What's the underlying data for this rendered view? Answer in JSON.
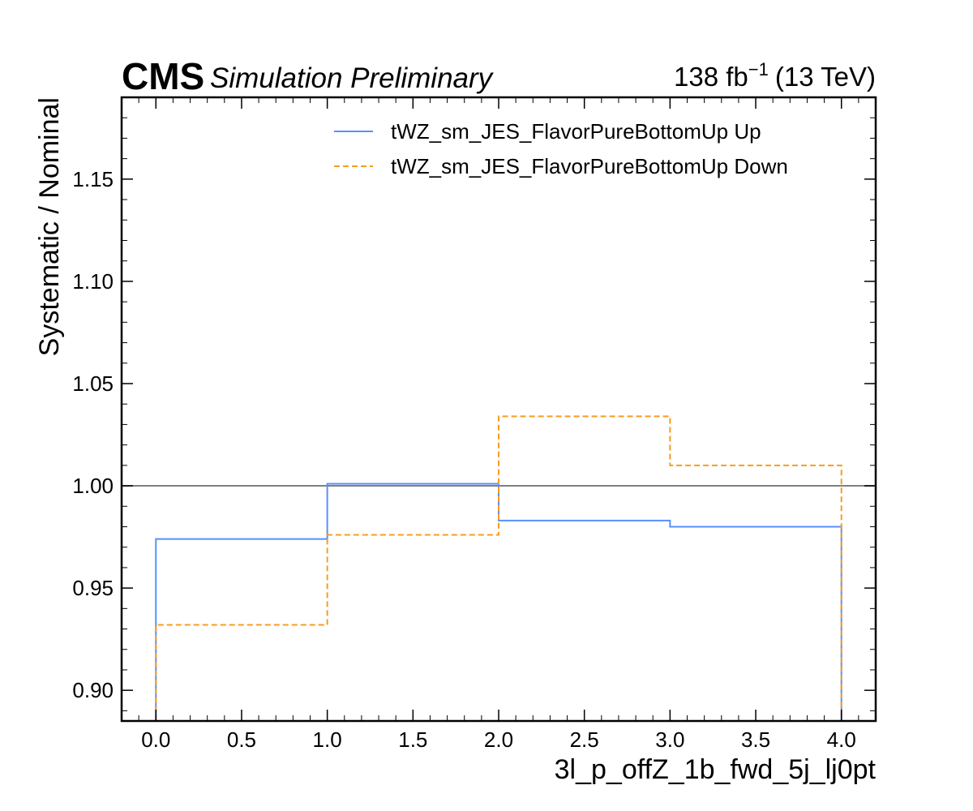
{
  "header": {
    "experiment": "CMS",
    "extra_text": "Simulation Preliminary",
    "lumi_value": "138 fb",
    "lumi_exponent": "−1",
    "energy": "(13 TeV)"
  },
  "chart_data": {
    "type": "line",
    "drawstyle": "step",
    "xlabel": "3l_p_offZ_1b_fwd_5j_lj0pt",
    "ylabel": "Systematic / Nominal",
    "xlim": [
      -0.2,
      4.2
    ],
    "ylim": [
      0.885,
      1.19
    ],
    "x_ticks": [
      0.0,
      0.5,
      1.0,
      1.5,
      2.0,
      2.5,
      3.0,
      3.5,
      4.0
    ],
    "x_tick_labels": [
      "0.0",
      "0.5",
      "1.0",
      "1.5",
      "2.0",
      "2.5",
      "3.0",
      "3.5",
      "4.0"
    ],
    "y_ticks": [
      0.9,
      0.95,
      1.0,
      1.05,
      1.1,
      1.15
    ],
    "y_tick_labels": [
      "0.90",
      "0.95",
      "1.00",
      "1.05",
      "1.10",
      "1.15"
    ],
    "bin_edges": [
      0,
      1,
      2,
      3,
      4
    ],
    "reference_line": {
      "y": 1.0,
      "color": "#808080"
    },
    "legend_position": "top-right",
    "series": [
      {
        "name": "tWZ_sm_JES_FlavorPureBottomUp Up",
        "color": "#5790fc",
        "linestyle": "solid",
        "values": [
          0.974,
          1.001,
          0.983,
          0.98
        ]
      },
      {
        "name": "tWZ_sm_JES_FlavorPureBottomUp Down",
        "color": "#f89c20",
        "linestyle": "dashed",
        "values": [
          0.932,
          0.976,
          1.034,
          1.01
        ]
      }
    ]
  }
}
